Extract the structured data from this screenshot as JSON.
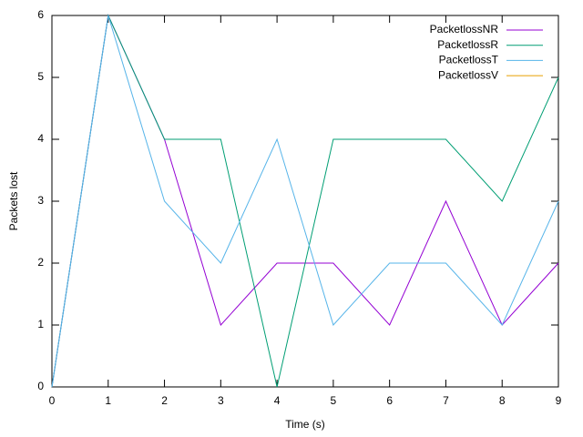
{
  "chart_data": {
    "type": "line",
    "x_label": "Time (s)",
    "y_label": "Packets lost",
    "x": [
      0,
      1,
      2,
      3,
      4,
      5,
      6,
      7,
      8,
      9
    ],
    "series": [
      {
        "name": "PacketlossNR",
        "color": "#9400d3",
        "values": [
          0,
          6,
          4,
          1,
          2,
          2,
          1,
          3,
          1,
          2
        ]
      },
      {
        "name": "PacketlossR",
        "color": "#009e73",
        "values": [
          0,
          6,
          4,
          4,
          0,
          4,
          4,
          4,
          3,
          5
        ]
      },
      {
        "name": "PacketlossT",
        "color": "#56b4e9",
        "values": [
          0,
          6,
          3,
          2,
          4,
          1,
          2,
          2,
          1,
          3
        ]
      },
      {
        "name": "PacketlossV",
        "color": "#e69f00",
        "values": [
          null,
          null,
          null,
          null,
          null,
          null,
          null,
          null,
          null,
          null
        ]
      }
    ],
    "xlim": [
      0,
      9
    ],
    "xticks": [
      0,
      1,
      2,
      3,
      4,
      5,
      6,
      7,
      8,
      9
    ],
    "ylim": [
      0,
      6
    ],
    "yticks": [
      0,
      1,
      2,
      3,
      4,
      5,
      6
    ],
    "grid": false,
    "legend": "top-right"
  }
}
